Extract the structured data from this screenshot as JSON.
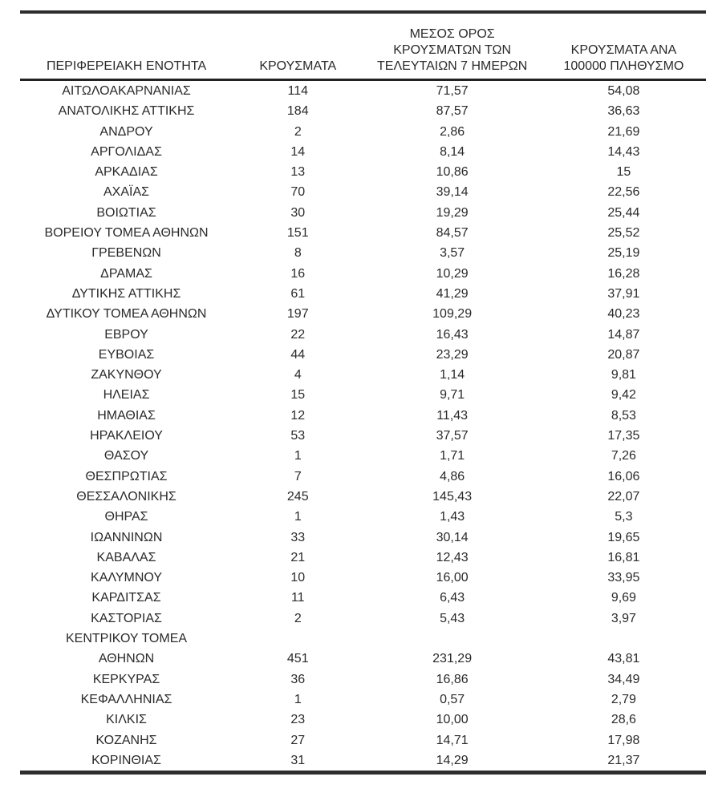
{
  "table": {
    "headers": [
      "ΠΕΡΙΦΕΡΕΙΑΚΗ ΕΝΟΤΗΤΑ",
      "ΚΡΟΥΣΜΑΤΑ",
      "ΜΕΣΟΣ ΟΡΟΣ\nΚΡΟΥΣΜΑΤΩΝ ΤΩΝ\nΤΕΛΕΥΤΑΙΩΝ 7 ΗΜΕΡΩΝ",
      "ΚΡΟΥΣΜΑΤΑ ΑΝΑ\n100000 ΠΛΗΘΥΣΜΟ"
    ],
    "rows": [
      [
        "ΑΙΤΩΛΟΑΚΑΡΝΑΝΙΑΣ",
        "114",
        "71,57",
        "54,08"
      ],
      [
        "ΑΝΑΤΟΛΙΚΗΣ ΑΤΤΙΚΗΣ",
        "184",
        "87,57",
        "36,63"
      ],
      [
        "ΑΝΔΡΟΥ",
        "2",
        "2,86",
        "21,69"
      ],
      [
        "ΑΡΓΟΛΙΔΑΣ",
        "14",
        "8,14",
        "14,43"
      ],
      [
        "ΑΡΚΑΔΙΑΣ",
        "13",
        "10,86",
        "15"
      ],
      [
        "ΑΧΑΪΑΣ",
        "70",
        "39,14",
        "22,56"
      ],
      [
        "ΒΟΙΩΤΙΑΣ",
        "30",
        "19,29",
        "25,44"
      ],
      [
        "ΒΟΡΕΙΟΥ ΤΟΜΕΑ ΑΘΗΝΩΝ",
        "151",
        "84,57",
        "25,52"
      ],
      [
        "ΓΡΕΒΕΝΩΝ",
        "8",
        "3,57",
        "25,19"
      ],
      [
        "ΔΡΑΜΑΣ",
        "16",
        "10,29",
        "16,28"
      ],
      [
        "ΔΥΤΙΚΗΣ ΑΤΤΙΚΗΣ",
        "61",
        "41,29",
        "37,91"
      ],
      [
        "ΔΥΤΙΚΟΥ ΤΟΜΕΑ ΑΘΗΝΩΝ",
        "197",
        "109,29",
        "40,23"
      ],
      [
        "ΕΒΡΟΥ",
        "22",
        "16,43",
        "14,87"
      ],
      [
        "ΕΥΒΟΙΑΣ",
        "44",
        "23,29",
        "20,87"
      ],
      [
        "ΖΑΚΥΝΘΟΥ",
        "4",
        "1,14",
        "9,81"
      ],
      [
        "ΗΛΕΙΑΣ",
        "15",
        "9,71",
        "9,42"
      ],
      [
        "ΗΜΑΘΙΑΣ",
        "12",
        "11,43",
        "8,53"
      ],
      [
        "ΗΡΑΚΛΕΙΟΥ",
        "53",
        "37,57",
        "17,35"
      ],
      [
        "ΘΑΣΟΥ",
        "1",
        "1,71",
        "7,26"
      ],
      [
        "ΘΕΣΠΡΩΤΙΑΣ",
        "7",
        "4,86",
        "16,06"
      ],
      [
        "ΘΕΣΣΑΛΟΝΙΚΗΣ",
        "245",
        "145,43",
        "22,07"
      ],
      [
        "ΘΗΡΑΣ",
        "1",
        "1,43",
        "5,3"
      ],
      [
        "ΙΩΑΝΝΙΝΩΝ",
        "33",
        "30,14",
        "19,65"
      ],
      [
        "ΚΑΒΑΛΑΣ",
        "21",
        "12,43",
        "16,81"
      ],
      [
        "ΚΑΛΥΜΝΟΥ",
        "10",
        "16,00",
        "33,95"
      ],
      [
        "ΚΑΡΔΙΤΣΑΣ",
        "11",
        "6,43",
        "9,69"
      ],
      [
        "ΚΑΣΤΟΡΙΑΣ",
        "2",
        "5,43",
        "3,97"
      ],
      [
        "ΚΕΝΤΡΙΚΟΥ ΤΟΜΕΑ\nΑΘΗΝΩΝ",
        "451",
        "231,29",
        "43,81"
      ],
      [
        "ΚΕΡΚΥΡΑΣ",
        "36",
        "16,86",
        "34,49"
      ],
      [
        "ΚΕΦΑΛΛΗΝΙΑΣ",
        "1",
        "0,57",
        "2,79"
      ],
      [
        "ΚΙΛΚΙΣ",
        "23",
        "10,00",
        "28,6"
      ],
      [
        "ΚΟΖΑΝΗΣ",
        "27",
        "14,71",
        "17,98"
      ],
      [
        "ΚΟΡΙΝΘΙΑΣ",
        "31",
        "14,29",
        "21,37"
      ]
    ],
    "cell_names": [
      "region-cell",
      "cases-cell",
      "avg-7day-cases-cell",
      "cases-per-100k-cell"
    ]
  },
  "colors": {
    "background": "#ffffff",
    "text": "#2a2a2a",
    "rule": "#2d2d2d"
  }
}
